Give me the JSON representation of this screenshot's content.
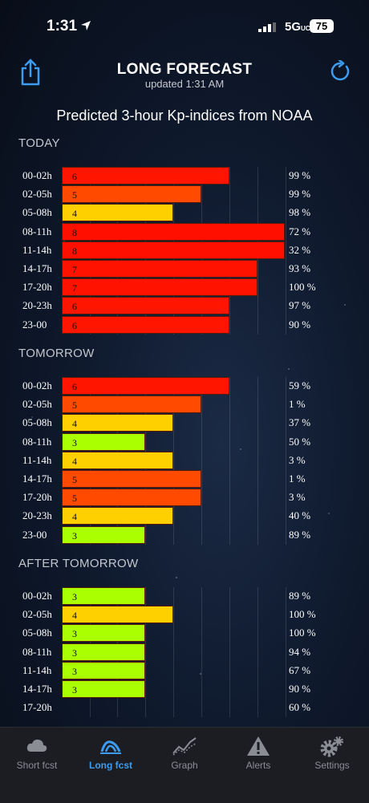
{
  "status": {
    "time": "1:31",
    "network": "5G",
    "network_suffix": "UC",
    "battery": "75"
  },
  "header": {
    "title": "LONG FORECAST",
    "updated": "updated  1:31 AM"
  },
  "subtitle": "Predicted 3-hour Kp-indices from NOAA",
  "sections": [
    {
      "title": "TODAY",
      "rows": [
        {
          "time": "00-02h",
          "kp": 6,
          "pct": "99 %"
        },
        {
          "time": "02-05h",
          "kp": 5,
          "pct": "99 %"
        },
        {
          "time": "05-08h",
          "kp": 4,
          "pct": "98 %"
        },
        {
          "time": "08-11h",
          "kp": 8,
          "pct": "72 %"
        },
        {
          "time": "11-14h",
          "kp": 8,
          "pct": "32 %"
        },
        {
          "time": "14-17h",
          "kp": 7,
          "pct": "93 %"
        },
        {
          "time": "17-20h",
          "kp": 7,
          "pct": "100 %"
        },
        {
          "time": "20-23h",
          "kp": 6,
          "pct": "97 %"
        },
        {
          "time": "23-00",
          "kp": 6,
          "pct": "90 %"
        }
      ]
    },
    {
      "title": "TOMORROW",
      "rows": [
        {
          "time": "00-02h",
          "kp": 6,
          "pct": "59 %"
        },
        {
          "time": "02-05h",
          "kp": 5,
          "pct": "1 %"
        },
        {
          "time": "05-08h",
          "kp": 4,
          "pct": "37 %"
        },
        {
          "time": "08-11h",
          "kp": 3,
          "pct": "50 %"
        },
        {
          "time": "11-14h",
          "kp": 4,
          "pct": "3 %"
        },
        {
          "time": "14-17h",
          "kp": 5,
          "pct": "1 %"
        },
        {
          "time": "17-20h",
          "kp": 5,
          "pct": "3 %"
        },
        {
          "time": "20-23h",
          "kp": 4,
          "pct": "40 %"
        },
        {
          "time": "23-00",
          "kp": 3,
          "pct": "89 %"
        }
      ]
    },
    {
      "title": "AFTER TOMORROW",
      "rows": [
        {
          "time": "00-02h",
          "kp": 3,
          "pct": "89 %"
        },
        {
          "time": "02-05h",
          "kp": 4,
          "pct": "100 %"
        },
        {
          "time": "05-08h",
          "kp": 3,
          "pct": "100 %"
        },
        {
          "time": "08-11h",
          "kp": 3,
          "pct": "94 %"
        },
        {
          "time": "11-14h",
          "kp": 3,
          "pct": "67 %"
        },
        {
          "time": "14-17h",
          "kp": 3,
          "pct": "90 %"
        },
        {
          "time": "17-20h",
          "kp": null,
          "pct": "60 %"
        }
      ]
    }
  ],
  "kp_colors": {
    "3": "#aaff00",
    "4": "#ffd000",
    "5": "#ff4a00",
    "6": "#ff1500",
    "7": "#ff1200",
    "8": "#ff0f00"
  },
  "tabs": [
    {
      "label": "Short fcst",
      "icon": "cloud-icon",
      "active": false
    },
    {
      "label": "Long fcst",
      "icon": "aurora-icon",
      "active": true
    },
    {
      "label": "Graph",
      "icon": "graph-icon",
      "active": false
    },
    {
      "label": "Alerts",
      "icon": "alert-icon",
      "active": false
    },
    {
      "label": "Settings",
      "icon": "gear-icon",
      "active": false
    }
  ]
}
